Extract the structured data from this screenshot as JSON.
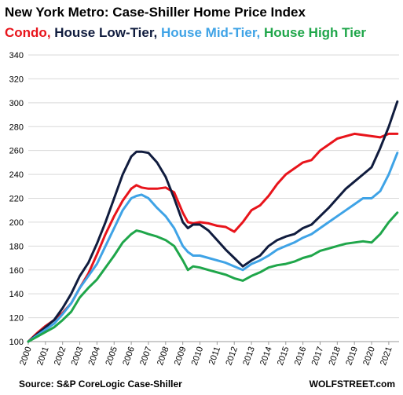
{
  "title": "New York Metro: Case-Shiller Home Price Index",
  "legend": [
    {
      "label": "Condo,",
      "color": "#e8141b"
    },
    {
      "label": " House Low-Tier,",
      "color": "#101c3e"
    },
    {
      "label": " House Mid-Tier,",
      "color": "#3fa3e6"
    },
    {
      "label": " House High Tier",
      "color": "#1fa64a"
    }
  ],
  "source": "Source: S&P CoreLogic Case-Shiller",
  "brand": "WOLFSTREET.com",
  "chart_data": {
    "type": "line",
    "title": "New York Metro: Case-Shiller Home Price Index",
    "xlabel": "",
    "ylabel": "",
    "xlim": [
      2000,
      2021.6
    ],
    "ylim": [
      100,
      340
    ],
    "yticks": [
      100,
      120,
      140,
      160,
      180,
      200,
      220,
      240,
      260,
      280,
      300,
      320,
      340
    ],
    "xticks": [
      "2000",
      "2001",
      "2002",
      "2003",
      "2004",
      "2005",
      "2006",
      "2007",
      "2008",
      "2009",
      "2010",
      "2011",
      "2012",
      "2013",
      "2014",
      "2015",
      "2016",
      "2017",
      "2018",
      "2019",
      "2020",
      "2021"
    ],
    "grid": true,
    "series": [
      {
        "name": "Condo",
        "color": "#e8141b",
        "x": [
          2000,
          2000.5,
          2001,
          2001.5,
          2002,
          2002.5,
          2003,
          2003.5,
          2004,
          2004.5,
          2005,
          2005.5,
          2006,
          2006.3,
          2006.6,
          2007,
          2007.5,
          2008,
          2008.5,
          2009,
          2009.3,
          2009.6,
          2010,
          2010.5,
          2011,
          2011.5,
          2012,
          2012.5,
          2013,
          2013.5,
          2014,
          2014.5,
          2015,
          2015.5,
          2016,
          2016.5,
          2017,
          2017.5,
          2018,
          2018.5,
          2019,
          2019.5,
          2020,
          2020.5,
          2021,
          2021.5
        ],
        "y": [
          100,
          107,
          113,
          118,
          124,
          132,
          145,
          157,
          173,
          190,
          205,
          218,
          228,
          231,
          229,
          228,
          228,
          229,
          225,
          208,
          200,
          199,
          200,
          199,
          197,
          196,
          192,
          200,
          210,
          214,
          222,
          232,
          240,
          245,
          250,
          252,
          260,
          265,
          270,
          272,
          274,
          273,
          272,
          271,
          274,
          274
        ]
      },
      {
        "name": "House Low-Tier",
        "color": "#101c3e",
        "x": [
          2000,
          2000.5,
          2001,
          2001.5,
          2002,
          2002.5,
          2003,
          2003.5,
          2004,
          2004.5,
          2005,
          2005.5,
          2006,
          2006.3,
          2006.6,
          2007,
          2007.5,
          2008,
          2008.5,
          2009,
          2009.3,
          2009.6,
          2010,
          2010.5,
          2011,
          2011.5,
          2012,
          2012.5,
          2013,
          2013.5,
          2014,
          2014.5,
          2015,
          2015.5,
          2016,
          2016.5,
          2017,
          2017.5,
          2018,
          2018.5,
          2019,
          2019.5,
          2020,
          2020.5,
          2021,
          2021.5
        ],
        "y": [
          100,
          106,
          112,
          118,
          128,
          140,
          155,
          166,
          182,
          200,
          220,
          240,
          255,
          259,
          259,
          258,
          250,
          238,
          220,
          200,
          195,
          198,
          198,
          193,
          185,
          177,
          170,
          163,
          168,
          172,
          180,
          185,
          188,
          190,
          195,
          198,
          205,
          212,
          220,
          228,
          234,
          240,
          246,
          262,
          280,
          301
        ]
      },
      {
        "name": "House Mid-Tier",
        "color": "#3fa3e6",
        "x": [
          2000,
          2000.5,
          2001,
          2001.5,
          2002,
          2002.5,
          2003,
          2003.5,
          2004,
          2004.5,
          2005,
          2005.5,
          2006,
          2006.3,
          2006.6,
          2007,
          2007.5,
          2008,
          2008.5,
          2009,
          2009.3,
          2009.6,
          2010,
          2010.5,
          2011,
          2011.5,
          2012,
          2012.5,
          2013,
          2013.5,
          2014,
          2014.5,
          2015,
          2015.5,
          2016,
          2016.5,
          2017,
          2017.5,
          2018,
          2018.5,
          2019,
          2019.5,
          2020,
          2020.5,
          2021,
          2021.5
        ],
        "y": [
          100,
          105,
          110,
          115,
          123,
          132,
          145,
          155,
          165,
          180,
          195,
          210,
          220,
          222,
          223,
          220,
          212,
          205,
          195,
          180,
          175,
          172,
          172,
          170,
          168,
          166,
          163,
          160,
          165,
          168,
          172,
          177,
          180,
          183,
          187,
          190,
          195,
          200,
          205,
          210,
          215,
          220,
          220,
          226,
          240,
          258
        ]
      },
      {
        "name": "House High Tier",
        "color": "#1fa64a",
        "x": [
          2000,
          2000.5,
          2001,
          2001.5,
          2002,
          2002.5,
          2003,
          2003.5,
          2004,
          2004.5,
          2005,
          2005.5,
          2006,
          2006.3,
          2006.6,
          2007,
          2007.5,
          2008,
          2008.5,
          2009,
          2009.3,
          2009.6,
          2010,
          2010.5,
          2011,
          2011.5,
          2012,
          2012.5,
          2013,
          2013.5,
          2014,
          2014.5,
          2015,
          2015.5,
          2016,
          2016.5,
          2017,
          2017.5,
          2018,
          2018.5,
          2019,
          2019.5,
          2020,
          2020.5,
          2021,
          2021.5
        ],
        "y": [
          100,
          104,
          108,
          112,
          118,
          125,
          137,
          145,
          152,
          162,
          172,
          183,
          190,
          193,
          192,
          190,
          188,
          185,
          180,
          168,
          160,
          163,
          162,
          160,
          158,
          156,
          153,
          151,
          155,
          158,
          162,
          164,
          165,
          167,
          170,
          172,
          176,
          178,
          180,
          182,
          183,
          184,
          183,
          190,
          200,
          208
        ]
      }
    ]
  }
}
